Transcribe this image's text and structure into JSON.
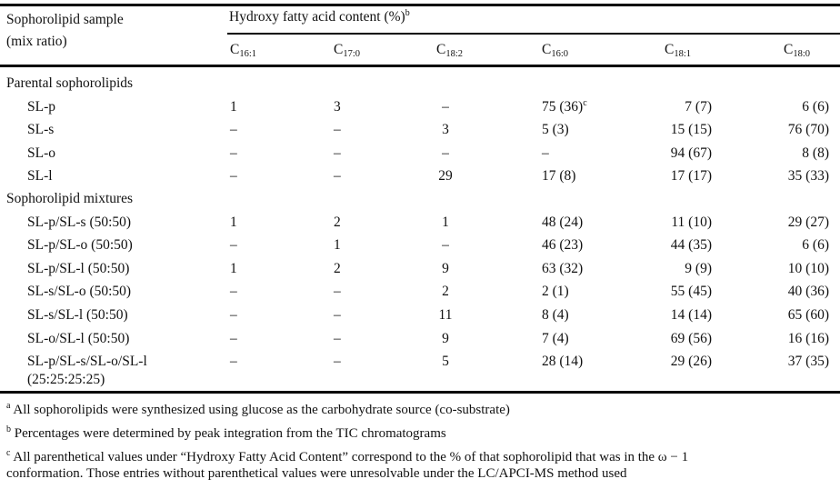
{
  "header": {
    "sample_label_line1": "Sophorolipid sample",
    "sample_label_line2": "(mix ratio)",
    "group_label": "Hydroxy fatty acid content (%)",
    "group_label_footnote": "b",
    "columns": [
      {
        "base": "C",
        "sub": "16:1"
      },
      {
        "base": "C",
        "sub": "17:0"
      },
      {
        "base": "C",
        "sub": "18:2"
      },
      {
        "base": "C",
        "sub": "16:0"
      },
      {
        "base": "C",
        "sub": "18:1"
      },
      {
        "base": "C",
        "sub": "18:0"
      }
    ]
  },
  "sections": [
    {
      "title": "Parental sophorolipids",
      "rows": [
        {
          "sample": "SL-p",
          "values": [
            "1",
            "3",
            "–",
            "75 (36)",
            "7 (7)",
            "6 (6)"
          ],
          "footnote_on": 3,
          "footnote": "c"
        },
        {
          "sample": "SL-s",
          "values": [
            "–",
            "–",
            "3",
            "5 (3)",
            "15 (15)",
            "76 (70)"
          ]
        },
        {
          "sample": "SL-o",
          "values": [
            "–",
            "–",
            "–",
            "–",
            "94 (67)",
            "8 (8)"
          ]
        },
        {
          "sample": "SL-l",
          "values": [
            "–",
            "–",
            "29",
            "17 (8)",
            "17 (17)",
            "35 (33)"
          ]
        }
      ]
    },
    {
      "title": "Sophorolipid mixtures",
      "rows": [
        {
          "sample": "SL-p/SL-s (50:50)",
          "values": [
            "1",
            "2",
            "1",
            "48 (24)",
            "11 (10)",
            "29 (27)"
          ]
        },
        {
          "sample": "SL-p/SL-o (50:50)",
          "values": [
            "–",
            "1",
            "–",
            "46 (23)",
            "44 (35)",
            "6 (6)"
          ]
        },
        {
          "sample": "SL-p/SL-l (50:50)",
          "values": [
            "1",
            "2",
            "9",
            "63 (32)",
            "9 (9)",
            "10 (10)"
          ]
        },
        {
          "sample": "SL-s/SL-o (50:50)",
          "values": [
            "–",
            "–",
            "2",
            "2 (1)",
            "55 (45)",
            "40 (36)"
          ]
        },
        {
          "sample": "SL-s/SL-l (50:50)",
          "values": [
            "–",
            "–",
            "11",
            "8 (4)",
            "14 (14)",
            "65 (60)"
          ]
        },
        {
          "sample": "SL-o/SL-l (50:50)",
          "values": [
            "–",
            "–",
            "9",
            "7 (4)",
            "69 (56)",
            "16 (16)"
          ]
        },
        {
          "sample": "SL-p/SL-s/SL-o/SL-l",
          "sample_line2": "(25:25:25:25)",
          "values": [
            "–",
            "–",
            "5",
            "28 (14)",
            "29 (26)",
            "37 (35)"
          ]
        }
      ]
    }
  ],
  "footnotes": [
    {
      "mark": "a",
      "text": "All sophorolipids were synthesized using glucose as the carbohydrate source (co-substrate)"
    },
    {
      "mark": "b",
      "text": "Percentages were determined by peak integration from the TIC chromatograms"
    },
    {
      "mark": "c",
      "text": "All parenthetical values under “Hydroxy Fatty Acid Content” correspond to the % of that sophorolipid that was in the ω − 1",
      "text_line2": "conformation. Those entries without parenthetical values were unresolvable under the LC/APCI-MS method used"
    }
  ]
}
